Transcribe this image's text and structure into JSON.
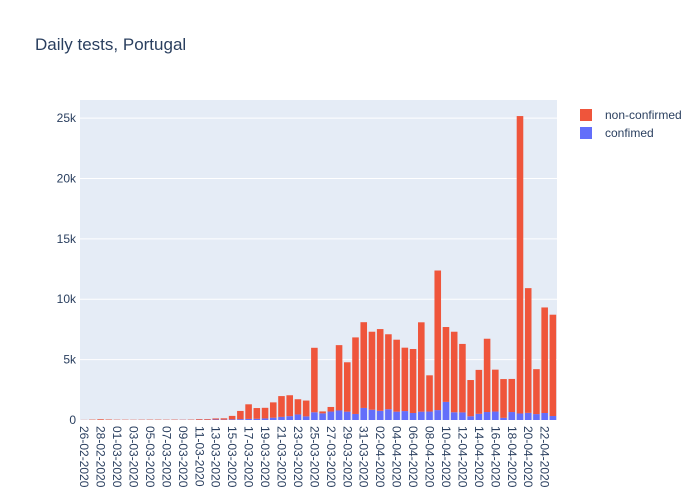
{
  "chart_data": {
    "type": "bar",
    "stacked": true,
    "title": "Daily tests, Portugal",
    "xlabel": "",
    "ylabel": "",
    "ylim": [
      0,
      26500
    ],
    "yticks": [
      0,
      5000,
      10000,
      15000,
      20000,
      25000
    ],
    "ytick_labels": [
      "0",
      "5k",
      "10k",
      "15k",
      "20k",
      "25k"
    ],
    "legend_position": "top-right",
    "categories": [
      "26-02-2020",
      "27-02-2020",
      "28-02-2020",
      "29-02-2020",
      "01-03-2020",
      "02-03-2020",
      "03-03-2020",
      "04-03-2020",
      "05-03-2020",
      "06-03-2020",
      "07-03-2020",
      "08-03-2020",
      "09-03-2020",
      "10-03-2020",
      "11-03-2020",
      "12-03-2020",
      "13-03-2020",
      "14-03-2020",
      "15-03-2020",
      "16-03-2020",
      "17-03-2020",
      "18-03-2020",
      "19-03-2020",
      "20-03-2020",
      "21-03-2020",
      "22-03-2020",
      "23-03-2020",
      "24-03-2020",
      "25-03-2020",
      "26-03-2020",
      "27-03-2020",
      "28-03-2020",
      "29-03-2020",
      "30-03-2020",
      "31-03-2020",
      "01-04-2020",
      "02-04-2020",
      "03-04-2020",
      "04-04-2020",
      "05-04-2020",
      "06-04-2020",
      "07-04-2020",
      "08-04-2020",
      "09-04-2020",
      "10-04-2020",
      "11-04-2020",
      "12-04-2020",
      "13-04-2020",
      "14-04-2020",
      "15-04-2020",
      "16-04-2020",
      "17-04-2020",
      "18-04-2020",
      "19-04-2020",
      "20-04-2020",
      "21-04-2020",
      "22-04-2020",
      "23-04-2020"
    ],
    "tick_labels": [
      "26-02-2020",
      "28-02-2020",
      "01-03-2020",
      "03-03-2020",
      "05-03-2020",
      "07-03-2020",
      "09-03-2020",
      "11-03-2020",
      "13-03-2020",
      "15-03-2020",
      "17-03-2020",
      "19-03-2020",
      "21-03-2020",
      "23-03-2020",
      "25-03-2020",
      "27-03-2020",
      "29-03-2020",
      "31-03-2020",
      "02-04-2020",
      "04-04-2020",
      "06-04-2020",
      "08-04-2020",
      "10-04-2020",
      "12-04-2020",
      "14-04-2020",
      "16-04-2020",
      "18-04-2020",
      "20-04-2020",
      "22-04-2020"
    ],
    "series": [
      {
        "name": "confimed",
        "color": "#636efa",
        "values": [
          0,
          0,
          0,
          0,
          2,
          0,
          2,
          4,
          4,
          5,
          4,
          9,
          11,
          11,
          18,
          20,
          40,
          30,
          50,
          70,
          90,
          100,
          130,
          190,
          260,
          320,
          460,
          300,
          640,
          550,
          700,
          790,
          690,
          500,
          1000,
          850,
          760,
          890,
          690,
          740,
          580,
          690,
          700,
          820,
          1500,
          640,
          630,
          310,
          510,
          660,
          700,
          180,
          660,
          540,
          590,
          490,
          580,
          330
        ]
      },
      {
        "name": "non-confirmed",
        "color": "#ef553b",
        "values": [
          10,
          30,
          60,
          40,
          25,
          25,
          20,
          25,
          30,
          30,
          25,
          30,
          20,
          30,
          60,
          60,
          90,
          110,
          290,
          680,
          1210,
          890,
          880,
          1270,
          1720,
          1730,
          1260,
          1310,
          5340,
          160,
          380,
          5410,
          4090,
          6340,
          7100,
          6460,
          6770,
          6210,
          5960,
          5250,
          5300,
          7400,
          3000,
          11560,
          6200,
          6670,
          5670,
          3000,
          3640,
          6070,
          3470,
          3210,
          2740,
          24630,
          10330,
          3720,
          8740,
          8390
        ]
      }
    ]
  }
}
